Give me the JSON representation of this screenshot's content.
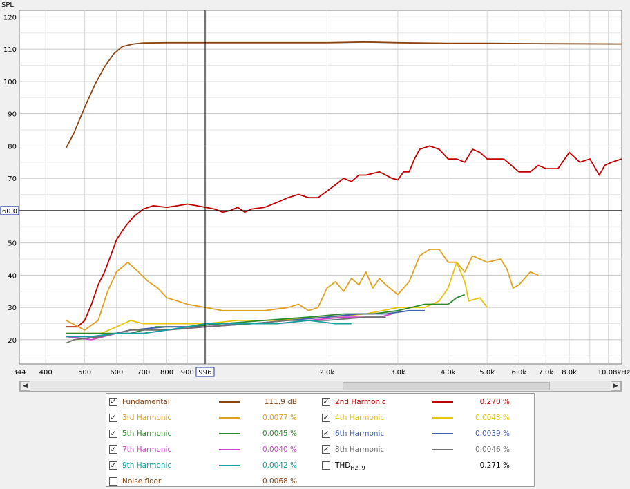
{
  "chart_data": {
    "type": "line",
    "title": "",
    "xlabel": "",
    "ylabel": "SPL",
    "x_scale": "log",
    "xlim": [
      344,
      10800
    ],
    "ylim": [
      12.5,
      122
    ],
    "grid": true,
    "x_tick_labels": [
      "344",
      "400",
      "500",
      "600",
      "700",
      "800",
      "900",
      "2.0k",
      "3.0k",
      "4.0k",
      "5.0k",
      "6.0k",
      "7.0k",
      "8.0k",
      "10.08kHz"
    ],
    "x_tick_values": [
      344,
      400,
      500,
      600,
      700,
      800,
      900,
      2000,
      3000,
      4000,
      5000,
      6000,
      7000,
      8000,
      10080
    ],
    "y_tick_values": [
      20,
      30,
      40,
      50,
      60,
      70,
      80,
      90,
      100,
      110,
      120
    ],
    "cursor": {
      "x": 996,
      "x_label": "996",
      "y": 60.0,
      "y_label": "60.0"
    },
    "series": [
      {
        "name": "Fundamental",
        "color": "#8b4513",
        "points": [
          [
            450,
            79.5
          ],
          [
            470,
            84
          ],
          [
            500,
            92
          ],
          [
            530,
            99
          ],
          [
            560,
            104.5
          ],
          [
            590,
            108.5
          ],
          [
            620,
            110.8
          ],
          [
            660,
            111.6
          ],
          [
            700,
            111.9
          ],
          [
            800,
            112
          ],
          [
            1000,
            112
          ],
          [
            1500,
            112
          ],
          [
            2000,
            112
          ],
          [
            2500,
            112.2
          ],
          [
            3000,
            112
          ],
          [
            4000,
            111.8
          ],
          [
            5000,
            111.8
          ],
          [
            7000,
            111.7
          ],
          [
            10800,
            111.6
          ]
        ]
      },
      {
        "name": "2nd Harmonic",
        "color": "#c00000",
        "points": [
          [
            450,
            24
          ],
          [
            480,
            24
          ],
          [
            500,
            26
          ],
          [
            520,
            31
          ],
          [
            540,
            37
          ],
          [
            560,
            41
          ],
          [
            580,
            46
          ],
          [
            600,
            51
          ],
          [
            630,
            55
          ],
          [
            660,
            58
          ],
          [
            700,
            60.5
          ],
          [
            740,
            61.5
          ],
          [
            800,
            61
          ],
          [
            850,
            61.5
          ],
          [
            900,
            62
          ],
          [
            950,
            61.5
          ],
          [
            1000,
            61
          ],
          [
            1050,
            60.5
          ],
          [
            1100,
            59.5
          ],
          [
            1150,
            60
          ],
          [
            1200,
            61
          ],
          [
            1250,
            59.5
          ],
          [
            1300,
            60.5
          ],
          [
            1400,
            61
          ],
          [
            1500,
            62.5
          ],
          [
            1600,
            64
          ],
          [
            1700,
            65
          ],
          [
            1800,
            64
          ],
          [
            1900,
            64
          ],
          [
            2000,
            66
          ],
          [
            2100,
            68
          ],
          [
            2200,
            70
          ],
          [
            2300,
            69
          ],
          [
            2400,
            71
          ],
          [
            2500,
            71
          ],
          [
            2700,
            72
          ],
          [
            2800,
            71
          ],
          [
            2900,
            70
          ],
          [
            3000,
            69.5
          ],
          [
            3100,
            72
          ],
          [
            3200,
            72
          ],
          [
            3300,
            76
          ],
          [
            3400,
            79
          ],
          [
            3600,
            80
          ],
          [
            3800,
            79
          ],
          [
            4000,
            76
          ],
          [
            4200,
            76
          ],
          [
            4400,
            75
          ],
          [
            4600,
            79
          ],
          [
            4800,
            78
          ],
          [
            5000,
            76
          ],
          [
            5300,
            76
          ],
          [
            5500,
            76
          ],
          [
            6000,
            72
          ],
          [
            6400,
            72
          ],
          [
            6700,
            74
          ],
          [
            7000,
            73
          ],
          [
            7500,
            73
          ],
          [
            8000,
            78
          ],
          [
            8500,
            75
          ],
          [
            9000,
            76
          ],
          [
            9500,
            71
          ],
          [
            9800,
            74
          ],
          [
            10200,
            75
          ],
          [
            10800,
            76
          ]
        ]
      },
      {
        "name": "3rd Harmonic",
        "color": "#e0a020",
        "points": [
          [
            450,
            26
          ],
          [
            500,
            23
          ],
          [
            540,
            26
          ],
          [
            570,
            35
          ],
          [
            600,
            41
          ],
          [
            640,
            44
          ],
          [
            680,
            41
          ],
          [
            720,
            38
          ],
          [
            760,
            36
          ],
          [
            800,
            33
          ],
          [
            850,
            32
          ],
          [
            900,
            31
          ],
          [
            1000,
            30
          ],
          [
            1100,
            29
          ],
          [
            1200,
            29
          ],
          [
            1400,
            29
          ],
          [
            1600,
            30
          ],
          [
            1700,
            31
          ],
          [
            1800,
            29
          ],
          [
            1900,
            30
          ],
          [
            2000,
            36
          ],
          [
            2100,
            38
          ],
          [
            2200,
            35
          ],
          [
            2300,
            39
          ],
          [
            2400,
            37
          ],
          [
            2500,
            41
          ],
          [
            2600,
            36
          ],
          [
            2700,
            39
          ],
          [
            2800,
            37
          ],
          [
            3000,
            34
          ],
          [
            3200,
            38
          ],
          [
            3400,
            46
          ],
          [
            3600,
            48
          ],
          [
            3800,
            48
          ],
          [
            4000,
            44
          ],
          [
            4200,
            44
          ],
          [
            4400,
            41
          ],
          [
            4600,
            46
          ],
          [
            4800,
            45
          ],
          [
            5000,
            44
          ],
          [
            5400,
            45
          ],
          [
            5600,
            42
          ],
          [
            5800,
            36
          ],
          [
            6000,
            37
          ],
          [
            6400,
            41
          ],
          [
            6700,
            40
          ]
        ]
      },
      {
        "name": "4th Harmonic",
        "color": "#e6c40a",
        "points": [
          [
            450,
            22
          ],
          [
            500,
            22
          ],
          [
            550,
            22
          ],
          [
            600,
            24
          ],
          [
            650,
            26
          ],
          [
            700,
            25
          ],
          [
            800,
            25
          ],
          [
            1000,
            25
          ],
          [
            1200,
            26
          ],
          [
            1500,
            26
          ],
          [
            2000,
            27
          ],
          [
            2500,
            28
          ],
          [
            3000,
            30
          ],
          [
            3500,
            30
          ],
          [
            3800,
            32
          ],
          [
            4000,
            36
          ],
          [
            4200,
            44
          ],
          [
            4400,
            38
          ],
          [
            4500,
            32
          ],
          [
            4800,
            33
          ],
          [
            5000,
            30
          ]
        ]
      },
      {
        "name": "5th Harmonic",
        "color": "#2a8a2a",
        "points": [
          [
            450,
            22
          ],
          [
            550,
            22
          ],
          [
            650,
            22
          ],
          [
            750,
            24
          ],
          [
            900,
            24
          ],
          [
            1100,
            25
          ],
          [
            1400,
            26
          ],
          [
            1800,
            27
          ],
          [
            2200,
            28
          ],
          [
            2600,
            28
          ],
          [
            3000,
            29
          ],
          [
            3500,
            31
          ],
          [
            4000,
            31
          ],
          [
            4200,
            33
          ],
          [
            4400,
            34
          ]
        ]
      },
      {
        "name": "6th Harmonic",
        "color": "#4060b0",
        "points": [
          [
            450,
            21
          ],
          [
            550,
            21
          ],
          [
            650,
            23
          ],
          [
            800,
            24
          ],
          [
            1000,
            24
          ],
          [
            1300,
            25
          ],
          [
            1600,
            26
          ],
          [
            2000,
            27
          ],
          [
            2400,
            28
          ],
          [
            2800,
            28
          ],
          [
            3200,
            29
          ],
          [
            3500,
            29
          ]
        ]
      },
      {
        "name": "7th Harmonic",
        "color": "#cc44cc",
        "points": [
          [
            450,
            21
          ],
          [
            520,
            20
          ],
          [
            600,
            22
          ],
          [
            700,
            22
          ],
          [
            800,
            23
          ],
          [
            1000,
            24
          ],
          [
            1200,
            25
          ],
          [
            1500,
            25
          ],
          [
            1800,
            26
          ],
          [
            2200,
            27
          ],
          [
            2700,
            27
          ],
          [
            2900,
            28
          ]
        ]
      },
      {
        "name": "8th Harmonic",
        "color": "#707070",
        "points": [
          [
            450,
            19
          ],
          [
            470,
            20
          ],
          [
            550,
            21
          ],
          [
            650,
            23
          ],
          [
            800,
            23
          ],
          [
            1000,
            24
          ],
          [
            1300,
            25
          ],
          [
            1600,
            26
          ],
          [
            2000,
            26
          ],
          [
            2500,
            27
          ],
          [
            2800,
            27
          ]
        ]
      },
      {
        "name": "9th Harmonic",
        "color": "#10a0a0",
        "points": [
          [
            450,
            21
          ],
          [
            520,
            21
          ],
          [
            600,
            22
          ],
          [
            700,
            22
          ],
          [
            800,
            23
          ],
          [
            900,
            24
          ],
          [
            1000,
            25
          ],
          [
            1200,
            25
          ],
          [
            1500,
            25
          ],
          [
            1800,
            26
          ],
          [
            2100,
            25
          ],
          [
            2300,
            25
          ]
        ]
      }
    ]
  },
  "legend": {
    "rows": [
      [
        {
          "checked": true,
          "check_glyph": "✓",
          "name": "Fundamental",
          "value": "111.9 dB",
          "color": "#8b4513"
        },
        {
          "checked": true,
          "check_glyph": "✓",
          "name": "2nd Harmonic",
          "value": "0.270 %",
          "color": "#c00000"
        }
      ],
      [
        {
          "checked": true,
          "check_glyph": "✓",
          "name": "3rd Harmonic",
          "value": "0.0077 %",
          "color": "#e0a020"
        },
        {
          "checked": true,
          "check_glyph": "✓",
          "name": "4th Harmonic",
          "value": "0.0043 %",
          "color": "#e6c40a"
        }
      ],
      [
        {
          "checked": true,
          "check_glyph": "✓",
          "name": "5th Harmonic",
          "value": "0.0045 %",
          "color": "#2a8a2a"
        },
        {
          "checked": true,
          "check_glyph": "✓",
          "name": "6th Harmonic",
          "value": "0.0039 %",
          "color": "#4060b0"
        }
      ],
      [
        {
          "checked": true,
          "check_glyph": "✓",
          "name": "7th Harmonic",
          "value": "0.0040 %",
          "color": "#cc44cc"
        },
        {
          "checked": true,
          "check_glyph": "✓",
          "name": "8th Harmonic",
          "value": "0.0046 %",
          "color": "#707070"
        }
      ],
      [
        {
          "checked": true,
          "check_glyph": "✓",
          "name": "9th Harmonic",
          "value": "0.0042 %",
          "color": "#10a0a0"
        },
        {
          "checked": false,
          "check_glyph": "",
          "name": "THD",
          "name_sub": "H2..9",
          "value": "0.271 %",
          "color": "#000000"
        }
      ],
      [
        {
          "checked": false,
          "check_glyph": "",
          "name": "Noise floor",
          "value": "0.0068 %",
          "color": "#8b4513"
        }
      ]
    ]
  },
  "scrollbar": {
    "left_arrow": "◀",
    "right_arrow": "▶"
  }
}
